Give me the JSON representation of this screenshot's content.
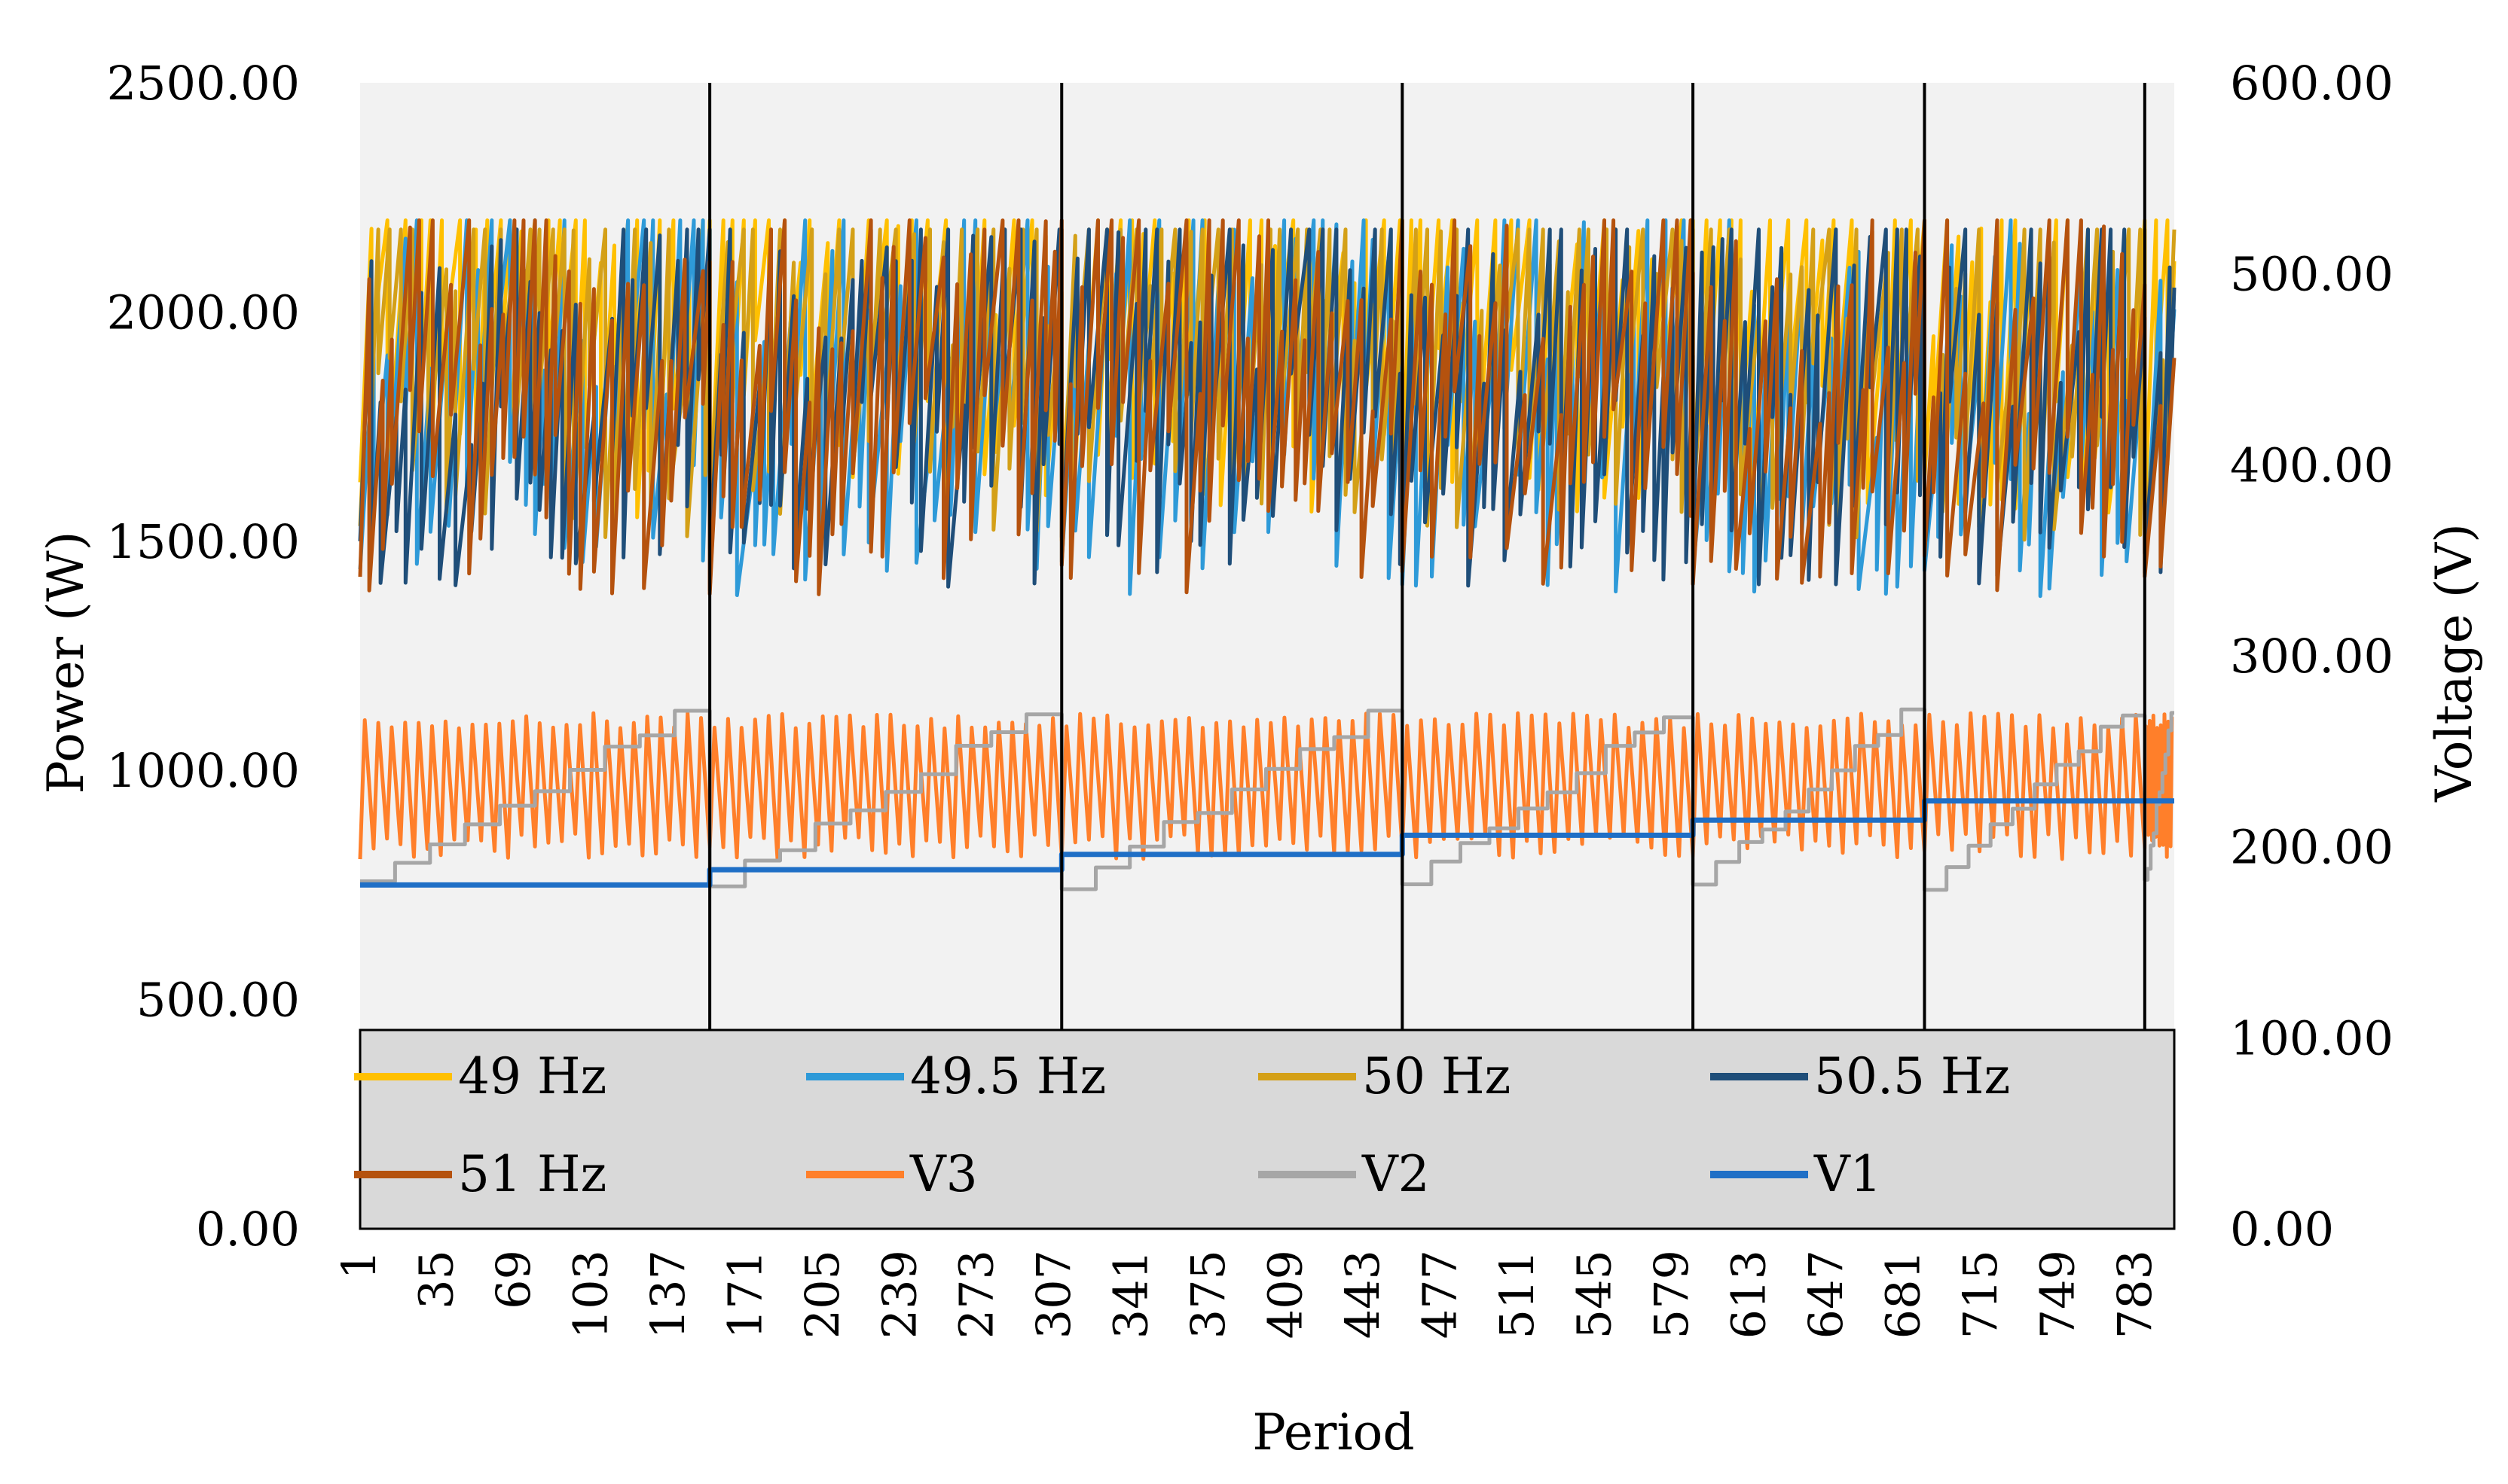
{
  "chart_data": {
    "type": "line",
    "xlabel": "Period",
    "ylabel": "Power (W)",
    "y2label": "Voltage (V)",
    "x_tick_labels": [
      "1",
      "35",
      "69",
      "103",
      "137",
      "171",
      "205",
      "239",
      "273",
      "307",
      "341",
      "375",
      "409",
      "443",
      "477",
      "511",
      "545",
      "579",
      "613",
      "647",
      "681",
      "715",
      "749",
      "783"
    ],
    "x_range": [
      1,
      800
    ],
    "ylim": [
      0,
      2500
    ],
    "y_ticks": [
      "0.00",
      "500.00",
      "1000.00",
      "1500.00",
      "2000.00",
      "2500.00"
    ],
    "y2lim": [
      0,
      600
    ],
    "y2_ticks": [
      "0.00",
      "100.00",
      "200.00",
      "300.00",
      "400.00",
      "500.00",
      "600.00"
    ],
    "grid": false,
    "plot_background": "#f2f2f2",
    "legend_position": "bottom-inside",
    "segment_boundaries": [
      155,
      310,
      460,
      588,
      690,
      787
    ],
    "series": [
      {
        "name": "49 Hz",
        "axis": "power",
        "color": "#ffc000",
        "approx_range_W": [
          1550,
          2200
        ]
      },
      {
        "name": "49.5 Hz",
        "axis": "power",
        "color": "#2e9ad8",
        "approx_range_W": [
          1380,
          2200
        ]
      },
      {
        "name": "50 Hz",
        "axis": "power",
        "color": "#d4a017",
        "approx_range_W": [
          1500,
          2180
        ]
      },
      {
        "name": "50.5 Hz",
        "axis": "power",
        "color": "#1f4e79",
        "approx_range_W": [
          1400,
          2180
        ]
      },
      {
        "name": "51 Hz",
        "axis": "power",
        "color": "#b5520e",
        "approx_range_W": [
          1380,
          2200
        ]
      },
      {
        "name": "V3",
        "axis": "voltage",
        "color": "#ff7f2a",
        "approx_range_V": [
          180,
          270
        ]
      },
      {
        "name": "V2",
        "axis": "voltage",
        "color": "#a6a6a6",
        "approx_range_V": [
          180,
          270
        ]
      },
      {
        "name": "V1",
        "axis": "voltage",
        "color": "#1f6fc6",
        "step_levels_V": [
          180,
          188,
          196,
          206,
          214,
          224
        ]
      }
    ]
  }
}
